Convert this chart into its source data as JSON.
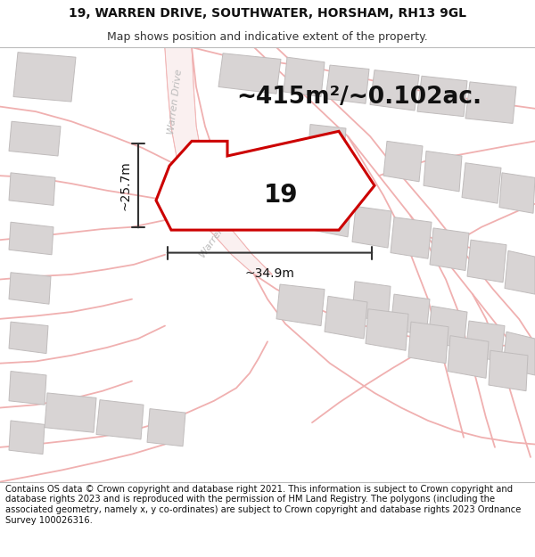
{
  "title_line1": "19, WARREN DRIVE, SOUTHWATER, HORSHAM, RH13 9GL",
  "title_line2": "Map shows position and indicative extent of the property.",
  "footer_text": "Contains OS data © Crown copyright and database right 2021. This information is subject to Crown copyright and database rights 2023 and is reproduced with the permission of HM Land Registry. The polygons (including the associated geometry, namely x, y co-ordinates) are subject to Crown copyright and database rights 2023 Ordnance Survey 100026316.",
  "area_label": "~415m²/~0.102ac.",
  "width_label": "~34.9m",
  "height_label": "~25.7m",
  "house_number": "19",
  "map_bg": "#ffffff",
  "road_color": "#f0b0b0",
  "building_color": "#d8d4d4",
  "building_edge": "#c0bcbc",
  "property_outline_color": "#cc0000",
  "dim_line_color": "#333333",
  "street_label_color": "#bbbbbb",
  "title_fontsize": 10,
  "subtitle_fontsize": 9,
  "area_fontsize": 19,
  "house_number_fontsize": 20,
  "dim_fontsize": 10,
  "footer_fontsize": 7.2,
  "street_fontsize": 8
}
